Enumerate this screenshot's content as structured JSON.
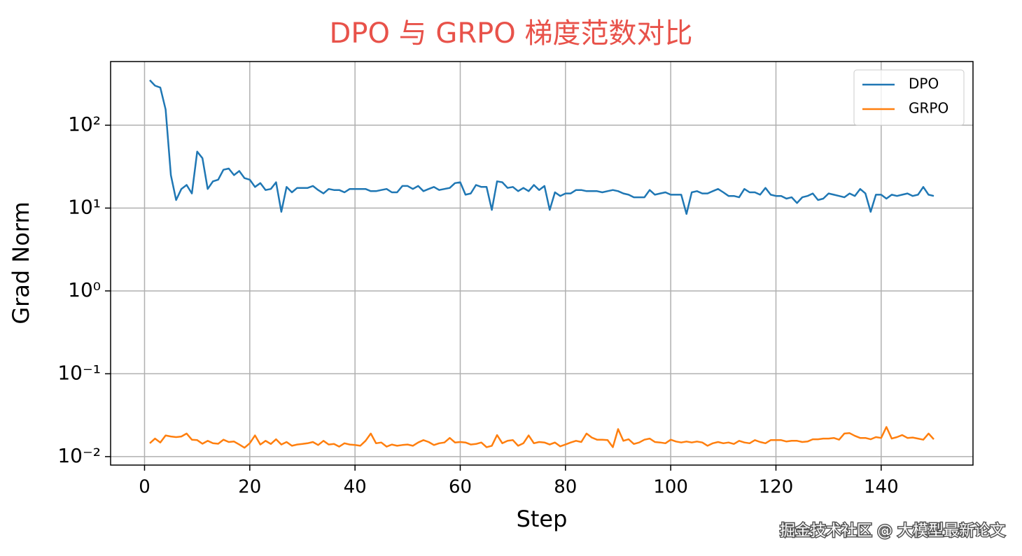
{
  "chart_data": {
    "type": "line",
    "title": "DPO 与 GRPO 梯度范数对比",
    "title_color": "#e8524a",
    "xlabel": "Step",
    "ylabel": "Grad Norm",
    "watermark": "掘金技术社区 @ 大模型最新论文",
    "log_y": true,
    "grid": true,
    "legend": "upper right",
    "xlim": [
      -6.45,
      157.45
    ],
    "xticks": [
      0,
      20,
      40,
      60,
      80,
      100,
      120,
      140
    ],
    "ylim": [
      0.0079,
      587
    ],
    "yticks": [
      {
        "value": 0.01,
        "label": "10⁻²"
      },
      {
        "value": 0.1,
        "label": "10⁻¹"
      },
      {
        "value": 1,
        "label": "10⁰"
      },
      {
        "value": 10,
        "label": "10¹"
      },
      {
        "value": 100,
        "label": "10²"
      }
    ],
    "x": [
      1,
      2,
      3,
      4,
      5,
      6,
      7,
      8,
      9,
      10,
      11,
      12,
      13,
      14,
      15,
      16,
      17,
      18,
      19,
      20,
      21,
      22,
      23,
      24,
      25,
      26,
      27,
      28,
      29,
      30,
      31,
      32,
      33,
      34,
      35,
      36,
      37,
      38,
      39,
      40,
      41,
      42,
      43,
      44,
      45,
      46,
      47,
      48,
      49,
      50,
      51,
      52,
      53,
      54,
      55,
      56,
      57,
      58,
      59,
      60,
      61,
      62,
      63,
      64,
      65,
      66,
      67,
      68,
      69,
      70,
      71,
      72,
      73,
      74,
      75,
      76,
      77,
      78,
      79,
      80,
      81,
      82,
      83,
      84,
      85,
      86,
      87,
      88,
      89,
      90,
      91,
      92,
      93,
      94,
      95,
      96,
      97,
      98,
      99,
      100,
      101,
      102,
      103,
      104,
      105,
      106,
      107,
      108,
      109,
      110,
      111,
      112,
      113,
      114,
      115,
      116,
      117,
      118,
      119,
      120,
      121,
      122,
      123,
      124,
      125,
      126,
      127,
      128,
      129,
      130,
      131,
      132,
      133,
      134,
      135,
      136,
      137,
      138,
      139,
      140,
      141,
      142,
      143,
      144,
      145,
      146,
      147,
      148,
      149,
      150
    ],
    "series": [
      {
        "name": "DPO",
        "color": "#1f77b4",
        "values": [
          350,
          300,
          285,
          155,
          25,
          12.5,
          17,
          19,
          15,
          48,
          40,
          17,
          21,
          22,
          29,
          30,
          25,
          28,
          23,
          22,
          18,
          20,
          16.5,
          17,
          20.5,
          9,
          18,
          15.5,
          17.5,
          17.5,
          17.5,
          18.5,
          16.5,
          15,
          17,
          16.5,
          16.5,
          15.5,
          17,
          17,
          17,
          17,
          16,
          16,
          16.5,
          17,
          15.5,
          15.5,
          18.5,
          18.5,
          17,
          18.5,
          16,
          17,
          18,
          16.5,
          17,
          17.5,
          20,
          20.5,
          14.5,
          15,
          19,
          18,
          18,
          9.5,
          21,
          20.5,
          17.5,
          18,
          16,
          17.5,
          16,
          19,
          16.5,
          18.5,
          9.5,
          15.5,
          14,
          15,
          15,
          16.5,
          16.5,
          16,
          16,
          16,
          15.5,
          16,
          16.5,
          16,
          15,
          14.5,
          13.5,
          13.5,
          13.5,
          16.5,
          14.5,
          15,
          15.5,
          14.5,
          14.5,
          14.5,
          8.5,
          15.5,
          16,
          15,
          15,
          16,
          17,
          15.5,
          14,
          14,
          13.5,
          17,
          15.5,
          15.5,
          14.5,
          17.5,
          14.5,
          14,
          14,
          13,
          13.5,
          11.5,
          13.5,
          14,
          15,
          12.5,
          13,
          15,
          14.5,
          14,
          13.5,
          15,
          14,
          17,
          15,
          9,
          14.5,
          14.5,
          13,
          14.5,
          14,
          14.5,
          15,
          14,
          14.5,
          18,
          14.5,
          14
        ]
      },
      {
        "name": "GRPO",
        "color": "#ff7f0e",
        "values": [
          0.0145,
          0.0165,
          0.0148,
          0.018,
          0.0175,
          0.0172,
          0.0175,
          0.019,
          0.016,
          0.0158,
          0.0143,
          0.0155,
          0.0145,
          0.0143,
          0.016,
          0.015,
          0.0152,
          0.014,
          0.0128,
          0.0145,
          0.018,
          0.014,
          0.0155,
          0.0142,
          0.0162,
          0.014,
          0.015,
          0.0135,
          0.014,
          0.0142,
          0.0145,
          0.015,
          0.0138,
          0.0155,
          0.014,
          0.0142,
          0.0132,
          0.0145,
          0.014,
          0.0138,
          0.0135,
          0.0155,
          0.019,
          0.0145,
          0.0148,
          0.0132,
          0.014,
          0.0135,
          0.0138,
          0.014,
          0.0135,
          0.0148,
          0.0158,
          0.015,
          0.0138,
          0.0145,
          0.0148,
          0.0168,
          0.0148,
          0.015,
          0.0148,
          0.014,
          0.0142,
          0.0148,
          0.013,
          0.0135,
          0.0182,
          0.0145,
          0.0155,
          0.0158,
          0.0135,
          0.0145,
          0.018,
          0.0145,
          0.015,
          0.0148,
          0.014,
          0.0148,
          0.0133,
          0.014,
          0.0148,
          0.0155,
          0.015,
          0.019,
          0.017,
          0.016,
          0.016,
          0.0158,
          0.013,
          0.0215,
          0.0155,
          0.0162,
          0.0142,
          0.0148,
          0.016,
          0.0165,
          0.015,
          0.0148,
          0.0145,
          0.016,
          0.0152,
          0.0148,
          0.0152,
          0.0148,
          0.0152,
          0.0148,
          0.0135,
          0.0145,
          0.015,
          0.0145,
          0.0148,
          0.0142,
          0.0155,
          0.0148,
          0.0145,
          0.0158,
          0.015,
          0.0145,
          0.0158,
          0.0158,
          0.0158,
          0.0152,
          0.0155,
          0.0155,
          0.015,
          0.0152,
          0.0162,
          0.0162,
          0.0165,
          0.0165,
          0.0168,
          0.016,
          0.019,
          0.0192,
          0.0178,
          0.0168,
          0.0168,
          0.0162,
          0.0172,
          0.0168,
          0.0228,
          0.0165,
          0.0172,
          0.0182,
          0.0168,
          0.017,
          0.0165,
          0.016,
          0.019,
          0.0162
        ]
      }
    ]
  }
}
